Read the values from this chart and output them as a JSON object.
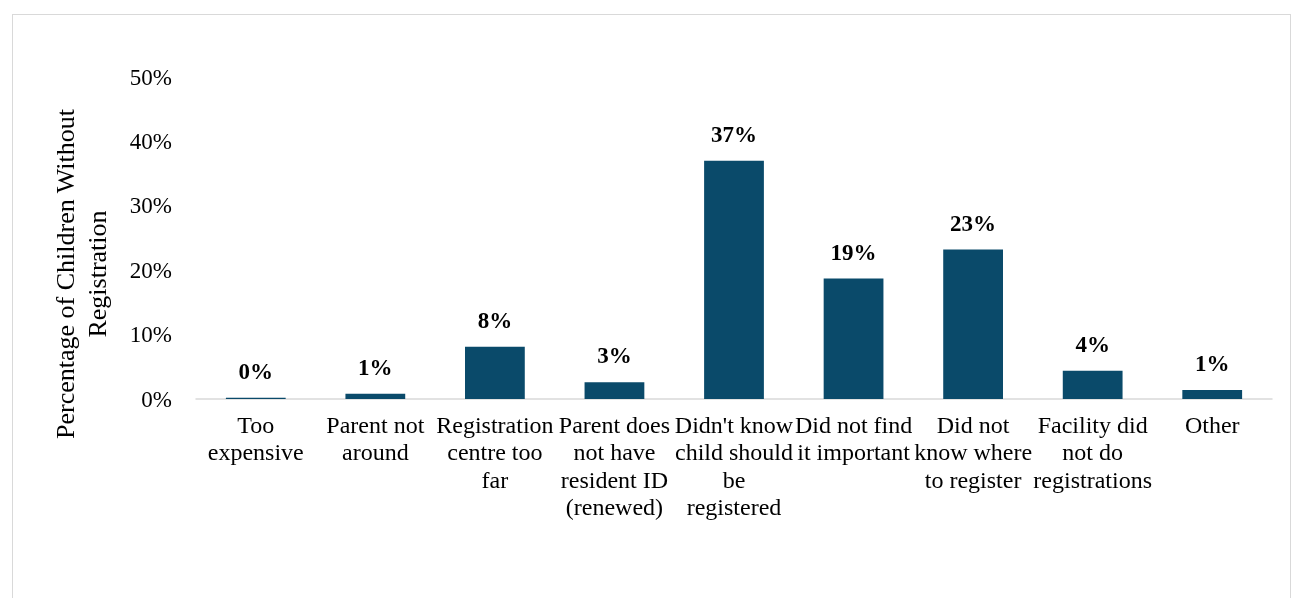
{
  "chart_data": {
    "type": "bar",
    "ylabel": "Percentage of Children Without Registration",
    "categories": [
      "Too expensive",
      "Parent not around",
      "Registration centre too far",
      "Parent does not have resident ID (renewed)",
      "Didn't know child should be registered",
      "Did not find it important",
      "Did not know where to register",
      "Facility did not do registrations",
      "Other"
    ],
    "values": [
      0.2,
      0.8,
      8.1,
      2.6,
      37,
      18.7,
      23.2,
      4.4,
      1.4
    ],
    "value_labels": [
      "0%",
      "1%",
      "8%",
      "3%",
      "37%",
      "19%",
      "23%",
      "4%",
      "1%"
    ],
    "color": "#0a4a6a",
    "ylim": [
      0,
      50
    ],
    "yticks": [
      {
        "value": 0,
        "label": "0%"
      },
      {
        "value": 10,
        "label": "10%"
      },
      {
        "value": 20,
        "label": "20%"
      },
      {
        "value": 30,
        "label": "30%"
      },
      {
        "value": 40,
        "label": "40%"
      },
      {
        "value": 50,
        "label": "50%"
      }
    ]
  }
}
